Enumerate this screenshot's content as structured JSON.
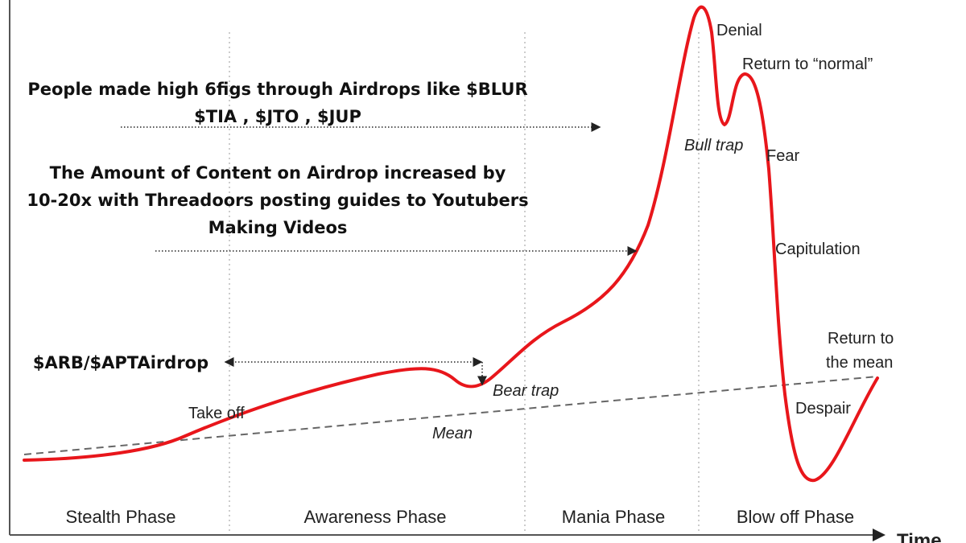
{
  "annotations": [
    {
      "lines": [
        "People made high 6figs through Airdrops like $BLUR",
        "$TIA , $JTO , $JUP"
      ]
    },
    {
      "lines": [
        "The Amount of Content on Airdrop increased by",
        "10-20x with Threadoors posting guides to Youtubers",
        "Making Videos"
      ]
    },
    {
      "lines": [
        "$ARB/$APTAirdrop"
      ]
    }
  ],
  "stages": {
    "denial": "Denial",
    "return_normal": "Return to “normal”",
    "bull_trap": "Bull trap",
    "fear": "Fear",
    "capitulation": "Capitulation",
    "return_mean": [
      "Return to",
      "the mean"
    ],
    "despair": "Despair",
    "bear_trap": "Bear trap",
    "take_off": "Take off",
    "mean": "Mean"
  },
  "phases": [
    "Stealth Phase",
    "Awareness Phase",
    "Mania Phase",
    "Blow off Phase"
  ],
  "axis": {
    "x_label": "Time"
  }
}
